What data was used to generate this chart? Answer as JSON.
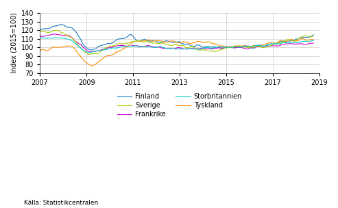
{
  "title": "",
  "ylabel": "Index (2015=100)",
  "xlabel": "",
  "ylim": [
    70,
    140
  ],
  "yticks": [
    70,
    80,
    90,
    100,
    110,
    120,
    130,
    140
  ],
  "xticks": [
    2007,
    2009,
    2011,
    2013,
    2015,
    2017,
    2019
  ],
  "source_text": "Källa: Statistikcentralen",
  "colors": {
    "Finland": "#1a7abf",
    "Frankrike": "#cc00cc",
    "Tyskland": "#ff8c00",
    "Sverige": "#aacc00",
    "Storbritannien": "#00cccc"
  },
  "legend_order": [
    "Finland",
    "Sverige",
    "Frankrike",
    "Storbritannien",
    "Tyskland"
  ],
  "background_color": "#ffffff",
  "grid_color": "#cccccc",
  "figsize": [
    4.93,
    3.04
  ],
  "dpi": 100
}
